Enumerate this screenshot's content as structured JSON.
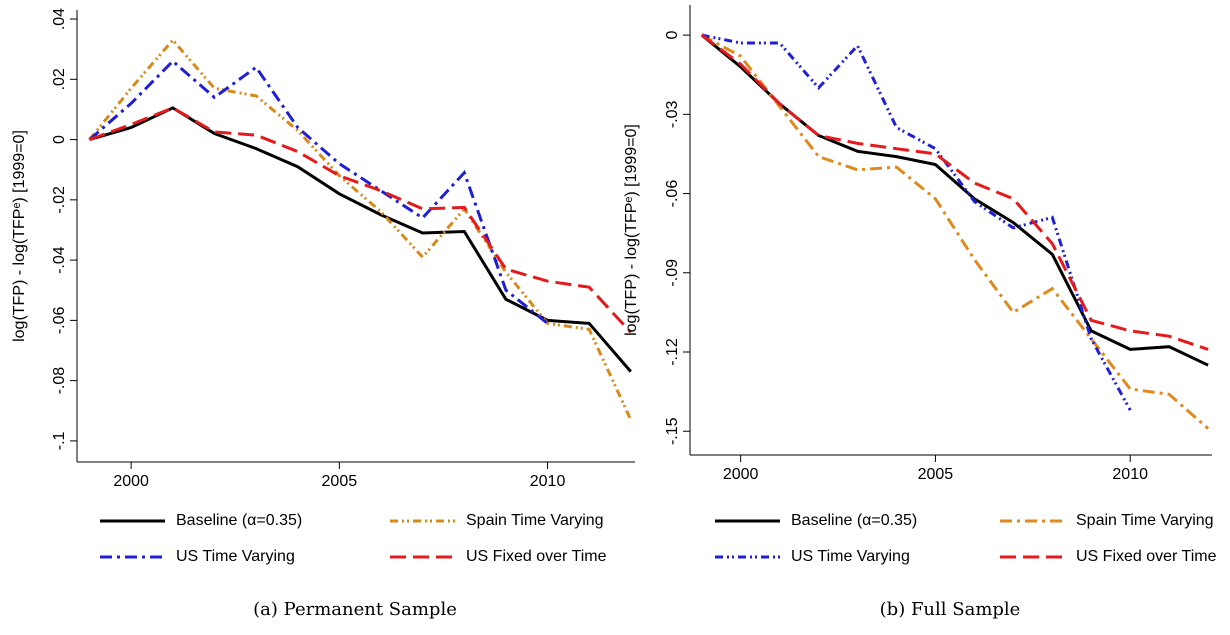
{
  "chart_data": [
    {
      "type": "line",
      "caption": "(a) Permanent Sample",
      "ylabel": "log(TFP) - log(TFPᵉ) [1999=0]",
      "x": [
        1999,
        2000,
        2001,
        2002,
        2003,
        2004,
        2005,
        2006,
        2007,
        2008,
        2009,
        2010,
        2011,
        2012
      ],
      "xlim": [
        1998.7,
        2012.1
      ],
      "xticks": [
        2000,
        2005,
        2010
      ],
      "ylim": [
        -0.107,
        0.043
      ],
      "yticks": [
        {
          "value": 0.04,
          "label": ".04"
        },
        {
          "value": 0.02,
          "label": ".02"
        },
        0,
        {
          "value": -0.02,
          "label": "-.02"
        },
        {
          "value": -0.04,
          "label": "-.04"
        },
        {
          "value": -0.06,
          "label": "-.06"
        },
        {
          "value": -0.08,
          "label": "-.08"
        },
        {
          "value": -0.1,
          "label": "-.1"
        }
      ],
      "series": [
        {
          "name": "Baseline (α=0.35)",
          "color": "#000000",
          "style": "solid",
          "values": [
            0,
            0.004,
            0.0105,
            0.002,
            -0.003,
            -0.009,
            -0.018,
            -0.025,
            -0.031,
            -0.0305,
            -0.053,
            -0.06,
            -0.061,
            -0.077
          ]
        },
        {
          "name": "Spain Time Varying",
          "color": "#d9891a",
          "style": "dashdotdot",
          "values": [
            0,
            0.017,
            0.033,
            0.017,
            0.0145,
            0.003,
            -0.012,
            -0.024,
            -0.039,
            -0.023,
            -0.044,
            -0.061,
            -0.063,
            -0.093
          ]
        },
        {
          "name": "US Time Varying",
          "color": "#1f1fd6",
          "style": "dashdot",
          "values": [
            0,
            0.012,
            0.026,
            0.014,
            0.024,
            0.004,
            -0.008,
            -0.017,
            -0.026,
            -0.011,
            -0.05,
            -0.061,
            null,
            null
          ]
        },
        {
          "name": "US Fixed over Time",
          "color": "#e41a1c",
          "style": "dash",
          "values": [
            0,
            0.005,
            0.0105,
            0.0025,
            0.0015,
            -0.004,
            -0.012,
            -0.017,
            -0.023,
            -0.0225,
            -0.043,
            -0.047,
            -0.049,
            -0.064
          ]
        }
      ]
    },
    {
      "type": "line",
      "caption": "(b) Full Sample",
      "ylabel": "log(TFP) - log(TFPᵉ) [1999=0]",
      "x": [
        1999,
        2000,
        2001,
        2002,
        2003,
        2004,
        2005,
        2006,
        2007,
        2008,
        2009,
        2010,
        2011,
        2012
      ],
      "xlim": [
        1998.7,
        2012.1
      ],
      "xticks": [
        2000,
        2005,
        2010
      ],
      "ylim": [
        -0.159,
        0.0114
      ],
      "yticks": [
        0,
        {
          "value": -0.03,
          "label": "-.03"
        },
        {
          "value": -0.06,
          "label": "-.06"
        },
        {
          "value": -0.09,
          "label": "-.09"
        },
        {
          "value": -0.12,
          "label": "-.12"
        },
        {
          "value": -0.15,
          "label": "-.15"
        }
      ],
      "series": [
        {
          "name": "Baseline (α=0.35)",
          "color": "#000000",
          "style": "solid",
          "values": [
            0,
            -0.012,
            -0.026,
            -0.038,
            -0.044,
            -0.046,
            -0.049,
            -0.062,
            -0.071,
            -0.083,
            -0.112,
            -0.119,
            -0.118,
            -0.125
          ]
        },
        {
          "name": "Spain Time Varying",
          "color": "#e08a1e",
          "style": "dashdot",
          "values": [
            0,
            -0.008,
            -0.027,
            -0.046,
            -0.051,
            -0.05,
            -0.062,
            -0.085,
            -0.105,
            -0.096,
            -0.115,
            -0.134,
            -0.136,
            -0.149
          ]
        },
        {
          "name": "US Time Varying",
          "color": "#1f1fd6",
          "style": "dashdotdot",
          "values": [
            0,
            -0.003,
            -0.003,
            -0.02,
            -0.004,
            -0.035,
            -0.043,
            -0.063,
            -0.073,
            -0.069,
            -0.115,
            -0.142,
            null,
            null
          ]
        },
        {
          "name": "US Fixed over Time",
          "color": "#e41a1c",
          "style": "dash",
          "values": [
            0,
            -0.011,
            -0.026,
            -0.038,
            -0.041,
            -0.043,
            -0.045,
            -0.056,
            -0.062,
            -0.079,
            -0.108,
            -0.112,
            -0.114,
            -0.119
          ]
        }
      ]
    }
  ]
}
